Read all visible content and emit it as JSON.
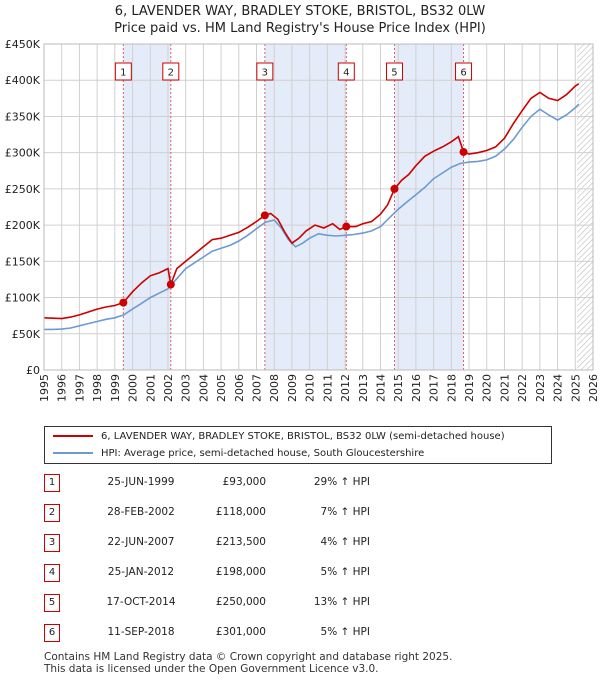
{
  "title_line1": "6, LAVENDER WAY, BRADLEY STOKE, BRISTOL, BS32 0LW",
  "title_line2": "Price paid vs. HM Land Registry's House Price Index (HPI)",
  "chart_data": {
    "type": "line",
    "xlim": [
      1995,
      2026
    ],
    "ylim": [
      0,
      450000
    ],
    "x_ticks": [
      "1995",
      "1996",
      "1997",
      "1998",
      "1999",
      "2000",
      "2001",
      "2002",
      "2003",
      "2004",
      "2005",
      "2006",
      "2007",
      "2008",
      "2009",
      "2010",
      "2011",
      "2012",
      "2013",
      "2014",
      "2015",
      "2016",
      "2017",
      "2018",
      "2019",
      "2020",
      "2021",
      "2022",
      "2023",
      "2024",
      "2025",
      "2026"
    ],
    "y_ticks": [
      {
        "value": 0,
        "label": "£0"
      },
      {
        "value": 50000,
        "label": "£50K"
      },
      {
        "value": 100000,
        "label": "£100K"
      },
      {
        "value": 150000,
        "label": "£150K"
      },
      {
        "value": 200000,
        "label": "£200K"
      },
      {
        "value": 250000,
        "label": "£250K"
      },
      {
        "value": 300000,
        "label": "£300K"
      },
      {
        "value": 350000,
        "label": "£350K"
      },
      {
        "value": 400000,
        "label": "£400K"
      },
      {
        "value": 450000,
        "label": "£450K"
      }
    ],
    "grid": true,
    "shaded_periods": [
      [
        1999.48,
        2002.16
      ],
      [
        2007.47,
        2012.07
      ],
      [
        2014.79,
        2018.69
      ]
    ],
    "future_hatch_from": 2025.1,
    "series": [
      {
        "name": "6, LAVENDER WAY, BRADLEY STOKE, BRISTOL, BS32 0LW (semi-detached house)",
        "color": "#cc0000",
        "points": [
          [
            1995.0,
            72000
          ],
          [
            1995.5,
            71500
          ],
          [
            1996.0,
            71000
          ],
          [
            1996.5,
            73000
          ],
          [
            1997.0,
            76000
          ],
          [
            1997.5,
            80000
          ],
          [
            1998.0,
            84000
          ],
          [
            1998.5,
            87000
          ],
          [
            1999.0,
            89000
          ],
          [
            1999.48,
            93000
          ],
          [
            2000.0,
            108000
          ],
          [
            2000.5,
            120000
          ],
          [
            2001.0,
            130000
          ],
          [
            2001.5,
            134000
          ],
          [
            2002.0,
            140000
          ],
          [
            2002.16,
            118000
          ],
          [
            2002.5,
            140000
          ],
          [
            2003.0,
            150000
          ],
          [
            2003.5,
            160000
          ],
          [
            2004.0,
            170000
          ],
          [
            2004.5,
            180000
          ],
          [
            2005.0,
            182000
          ],
          [
            2005.5,
            186000
          ],
          [
            2006.0,
            190000
          ],
          [
            2006.5,
            197000
          ],
          [
            2007.0,
            205000
          ],
          [
            2007.47,
            213500
          ],
          [
            2007.8,
            216000
          ],
          [
            2008.2,
            208000
          ],
          [
            2008.6,
            190000
          ],
          [
            2009.0,
            175000
          ],
          [
            2009.4,
            182000
          ],
          [
            2009.8,
            192000
          ],
          [
            2010.3,
            200000
          ],
          [
            2010.8,
            196000
          ],
          [
            2011.3,
            202000
          ],
          [
            2011.7,
            194000
          ],
          [
            2012.07,
            198000
          ],
          [
            2012.6,
            198000
          ],
          [
            2013.0,
            202000
          ],
          [
            2013.5,
            205000
          ],
          [
            2014.0,
            215000
          ],
          [
            2014.4,
            228000
          ],
          [
            2014.79,
            250000
          ],
          [
            2015.2,
            262000
          ],
          [
            2015.6,
            270000
          ],
          [
            2016.0,
            282000
          ],
          [
            2016.5,
            295000
          ],
          [
            2017.0,
            302000
          ],
          [
            2017.5,
            308000
          ],
          [
            2018.0,
            315000
          ],
          [
            2018.4,
            322000
          ],
          [
            2018.69,
            301000
          ],
          [
            2019.0,
            298000
          ],
          [
            2019.5,
            300000
          ],
          [
            2020.0,
            303000
          ],
          [
            2020.5,
            308000
          ],
          [
            2021.0,
            320000
          ],
          [
            2021.5,
            340000
          ],
          [
            2022.0,
            358000
          ],
          [
            2022.5,
            375000
          ],
          [
            2023.0,
            383000
          ],
          [
            2023.5,
            375000
          ],
          [
            2024.0,
            372000
          ],
          [
            2024.5,
            380000
          ],
          [
            2025.0,
            392000
          ],
          [
            2025.2,
            395000
          ]
        ]
      },
      {
        "name": "HPI: Average price, semi-detached house, South Gloucestershire",
        "color": "#6b9bd2",
        "points": [
          [
            1995.0,
            56000
          ],
          [
            1995.5,
            56000
          ],
          [
            1996.0,
            56500
          ],
          [
            1996.5,
            58000
          ],
          [
            1997.0,
            61000
          ],
          [
            1997.5,
            64000
          ],
          [
            1998.0,
            67000
          ],
          [
            1998.5,
            70000
          ],
          [
            1999.0,
            72000
          ],
          [
            1999.5,
            76000
          ],
          [
            2000.0,
            84000
          ],
          [
            2000.5,
            92000
          ],
          [
            2001.0,
            100000
          ],
          [
            2001.5,
            106000
          ],
          [
            2002.0,
            112000
          ],
          [
            2002.5,
            126000
          ],
          [
            2003.0,
            140000
          ],
          [
            2003.5,
            148000
          ],
          [
            2004.0,
            156000
          ],
          [
            2004.5,
            164000
          ],
          [
            2005.0,
            168000
          ],
          [
            2005.5,
            172000
          ],
          [
            2006.0,
            178000
          ],
          [
            2006.5,
            186000
          ],
          [
            2007.0,
            195000
          ],
          [
            2007.5,
            204000
          ],
          [
            2008.0,
            207000
          ],
          [
            2008.4,
            196000
          ],
          [
            2008.8,
            180000
          ],
          [
            2009.2,
            170000
          ],
          [
            2009.6,
            175000
          ],
          [
            2010.0,
            182000
          ],
          [
            2010.5,
            188000
          ],
          [
            2011.0,
            186000
          ],
          [
            2011.5,
            185000
          ],
          [
            2012.0,
            186000
          ],
          [
            2012.5,
            187000
          ],
          [
            2013.0,
            189000
          ],
          [
            2013.5,
            192000
          ],
          [
            2014.0,
            198000
          ],
          [
            2014.5,
            210000
          ],
          [
            2015.0,
            222000
          ],
          [
            2015.5,
            232000
          ],
          [
            2016.0,
            242000
          ],
          [
            2016.5,
            252000
          ],
          [
            2017.0,
            264000
          ],
          [
            2017.5,
            272000
          ],
          [
            2018.0,
            280000
          ],
          [
            2018.5,
            285000
          ],
          [
            2019.0,
            287000
          ],
          [
            2019.5,
            288000
          ],
          [
            2020.0,
            290000
          ],
          [
            2020.5,
            295000
          ],
          [
            2021.0,
            305000
          ],
          [
            2021.5,
            318000
          ],
          [
            2022.0,
            335000
          ],
          [
            2022.5,
            350000
          ],
          [
            2023.0,
            360000
          ],
          [
            2023.5,
            352000
          ],
          [
            2024.0,
            345000
          ],
          [
            2024.5,
            352000
          ],
          [
            2025.0,
            362000
          ],
          [
            2025.2,
            367000
          ]
        ]
      }
    ],
    "markers": [
      {
        "label": "1",
        "x": 1999.48,
        "y": 93000
      },
      {
        "label": "2",
        "x": 2002.16,
        "y": 118000
      },
      {
        "label": "3",
        "x": 2007.47,
        "y": 213500
      },
      {
        "label": "4",
        "x": 2012.07,
        "y": 198000
      },
      {
        "label": "5",
        "x": 2014.79,
        "y": 250000
      },
      {
        "label": "6",
        "x": 2018.69,
        "y": 301000
      }
    ]
  },
  "sales": [
    {
      "num": "1",
      "date": "25-JUN-1999",
      "price": "£93,000",
      "hpi": "29% ↑ HPI"
    },
    {
      "num": "2",
      "date": "28-FEB-2002",
      "price": "£118,000",
      "hpi": "7% ↑ HPI"
    },
    {
      "num": "3",
      "date": "22-JUN-2007",
      "price": "£213,500",
      "hpi": "4% ↑ HPI"
    },
    {
      "num": "4",
      "date": "25-JAN-2012",
      "price": "£198,000",
      "hpi": "5% ↑ HPI"
    },
    {
      "num": "5",
      "date": "17-OCT-2014",
      "price": "£250,000",
      "hpi": "13% ↑ HPI"
    },
    {
      "num": "6",
      "date": "11-SEP-2018",
      "price": "£301,000",
      "hpi": "5% ↑ HPI"
    }
  ],
  "footer_line1": "Contains HM Land Registry data © Crown copyright and database right 2025.",
  "footer_line2": "This data is licensed under the Open Government Licence v3.0."
}
